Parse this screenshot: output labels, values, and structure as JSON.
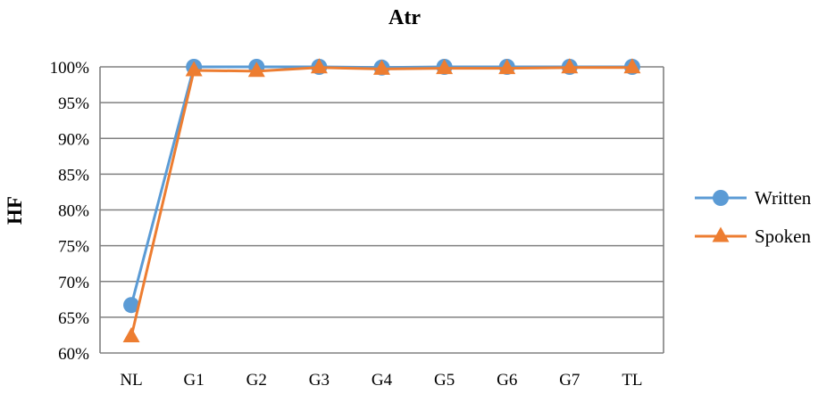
{
  "chart_data": {
    "type": "line",
    "title": "Atr",
    "xlabel": "",
    "ylabel": "HF",
    "categories": [
      "NL",
      "G1",
      "G2",
      "G3",
      "G4",
      "G5",
      "G6",
      "G7",
      "TL"
    ],
    "ylim": [
      60,
      100
    ],
    "yticks": [
      60,
      65,
      70,
      75,
      80,
      85,
      90,
      95,
      100
    ],
    "ytick_labels": [
      "60%",
      "65%",
      "70%",
      "75%",
      "80%",
      "85%",
      "90%",
      "95%",
      "100%"
    ],
    "grid": true,
    "legend_position": "right",
    "series": [
      {
        "name": "Written",
        "marker": "circle",
        "color": "#5B9BD5",
        "values": [
          66.7,
          100,
          100,
          100,
          99.9,
          100,
          100,
          100,
          100
        ]
      },
      {
        "name": "Spoken",
        "marker": "triangle",
        "color": "#ED7D31",
        "values": [
          62.3,
          99.5,
          99.4,
          99.9,
          99.7,
          99.8,
          99.8,
          99.9,
          99.9
        ]
      }
    ]
  }
}
